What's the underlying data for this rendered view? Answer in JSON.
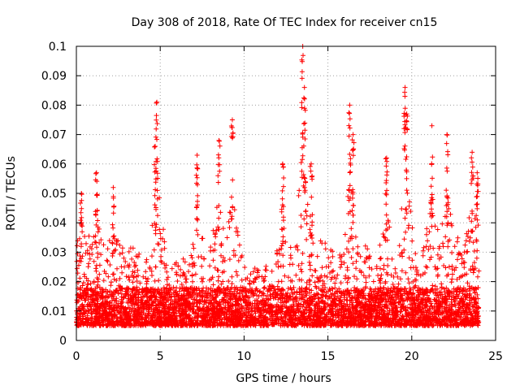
{
  "chart_data": {
    "type": "scatter",
    "title": "Day 308 of 2018, Rate Of TEC Index for receiver cn15",
    "xlabel": "GPS time / hours",
    "ylabel": "ROTI / TECUs",
    "xlim": [
      0,
      25
    ],
    "ylim": [
      0,
      0.1
    ],
    "xticks": [
      "0",
      "5",
      "10",
      "15",
      "20",
      "25"
    ],
    "yticks": [
      "0",
      "0.01",
      "0.02",
      "0.03",
      "0.04",
      "0.05",
      "0.06",
      "0.07",
      "0.08",
      "0.09",
      "0.1"
    ],
    "grid": true,
    "marker": "+",
    "color": "#ff0000",
    "series": [
      {
        "name": "ROTI",
        "description": "dense cloud of ROTI samples between 0 and 24 h, mostly 0.005-0.03 TECU/min",
        "peaks": [
          {
            "x": 0.3,
            "y": 0.05
          },
          {
            "x": 1.2,
            "y": 0.057
          },
          {
            "x": 2.2,
            "y": 0.052
          },
          {
            "x": 4.8,
            "y": 0.081
          },
          {
            "x": 4.7,
            "y": 0.066
          },
          {
            "x": 7.2,
            "y": 0.063
          },
          {
            "x": 8.5,
            "y": 0.068
          },
          {
            "x": 9.3,
            "y": 0.075
          },
          {
            "x": 12.3,
            "y": 0.06
          },
          {
            "x": 13.5,
            "y": 0.1
          },
          {
            "x": 13.6,
            "y": 0.086
          },
          {
            "x": 14.0,
            "y": 0.06
          },
          {
            "x": 16.3,
            "y": 0.08
          },
          {
            "x": 16.5,
            "y": 0.07
          },
          {
            "x": 18.5,
            "y": 0.062
          },
          {
            "x": 19.6,
            "y": 0.086
          },
          {
            "x": 19.7,
            "y": 0.077
          },
          {
            "x": 21.2,
            "y": 0.073
          },
          {
            "x": 22.1,
            "y": 0.07
          },
          {
            "x": 23.6,
            "y": 0.064
          },
          {
            "x": 23.9,
            "y": 0.057
          }
        ]
      }
    ]
  }
}
